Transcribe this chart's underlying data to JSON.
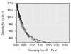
{
  "title": "",
  "xlabel": "Viscosity (in 10⁻⁶ Pa·s)",
  "ylabel": "Density (in kg·m⁻³)",
  "xlim": [
    0,
    0.32
  ],
  "ylim": [
    820,
    1105
  ],
  "background_color": "#ffffff",
  "plot_bg_color": "#e8e8e8",
  "point_color": "#222222",
  "markersize": 1.2,
  "xticks": [
    0.0,
    0.05,
    0.1,
    0.15,
    0.2,
    0.25,
    0.3
  ],
  "yticks": [
    850,
    900,
    950,
    1000,
    1050,
    1100
  ],
  "x_data": [
    0.003,
    0.004,
    0.004,
    0.005,
    0.005,
    0.005,
    0.006,
    0.006,
    0.006,
    0.007,
    0.007,
    0.007,
    0.008,
    0.008,
    0.008,
    0.009,
    0.009,
    0.009,
    0.01,
    0.01,
    0.01,
    0.011,
    0.011,
    0.012,
    0.012,
    0.012,
    0.013,
    0.013,
    0.014,
    0.014,
    0.015,
    0.015,
    0.016,
    0.016,
    0.017,
    0.017,
    0.018,
    0.018,
    0.019,
    0.019,
    0.02,
    0.02,
    0.021,
    0.021,
    0.022,
    0.022,
    0.023,
    0.024,
    0.025,
    0.025,
    0.026,
    0.027,
    0.028,
    0.029,
    0.03,
    0.031,
    0.032,
    0.033,
    0.034,
    0.035,
    0.036,
    0.038,
    0.04,
    0.042,
    0.044,
    0.046,
    0.048,
    0.05,
    0.053,
    0.056,
    0.059,
    0.062,
    0.065,
    0.068,
    0.072,
    0.076,
    0.08,
    0.085,
    0.09,
    0.095,
    0.1,
    0.108,
    0.115,
    0.122,
    0.13,
    0.14,
    0.15,
    0.16,
    0.17,
    0.18,
    0.19,
    0.2,
    0.21,
    0.22,
    0.24,
    0.26,
    0.28,
    0.3,
    0.004,
    0.005,
    0.006,
    0.007,
    0.008,
    0.009,
    0.01,
    0.011,
    0.012,
    0.013,
    0.014,
    0.015,
    0.016,
    0.017,
    0.018,
    0.019,
    0.02,
    0.022,
    0.024,
    0.026,
    0.028,
    0.03,
    0.033,
    0.036,
    0.04,
    0.044,
    0.048,
    0.052,
    0.056,
    0.06,
    0.065,
    0.07,
    0.075,
    0.08,
    0.09,
    0.1,
    0.11,
    0.12,
    0.13,
    0.14,
    0.15,
    0.16,
    0.175,
    0.19,
    0.21,
    0.23,
    0.25,
    0.27,
    0.29
  ],
  "y_data": [
    1098,
    1092,
    1095,
    1088,
    1091,
    1085,
    1082,
    1085,
    1079,
    1076,
    1079,
    1073,
    1070,
    1073,
    1067,
    1064,
    1067,
    1061,
    1058,
    1061,
    1055,
    1052,
    1049,
    1046,
    1049,
    1043,
    1040,
    1043,
    1037,
    1040,
    1034,
    1031,
    1028,
    1031,
    1025,
    1028,
    1022,
    1019,
    1016,
    1019,
    1013,
    1010,
    1007,
    1010,
    1004,
    1001,
    998,
    995,
    992,
    995,
    989,
    986,
    983,
    980,
    977,
    974,
    971,
    968,
    965,
    962,
    959,
    953,
    947,
    941,
    935,
    929,
    923,
    918,
    911,
    905,
    899,
    894,
    888,
    883,
    878,
    873,
    869,
    864,
    860,
    856,
    852,
    847,
    843,
    840,
    836,
    832,
    829,
    826,
    823,
    820,
    818,
    816,
    814,
    812,
    809,
    807,
    805,
    803,
    1094,
    1087,
    1081,
    1075,
    1069,
    1063,
    1057,
    1051,
    1045,
    1039,
    1033,
    1027,
    1021,
    1015,
    1009,
    1003,
    997,
    988,
    979,
    970,
    962,
    954,
    944,
    935,
    924,
    914,
    905,
    897,
    890,
    883,
    876,
    870,
    864,
    858,
    849,
    841,
    834,
    828,
    823,
    818,
    813,
    809,
    804,
    800,
    796,
    792,
    789,
    786,
    784
  ]
}
